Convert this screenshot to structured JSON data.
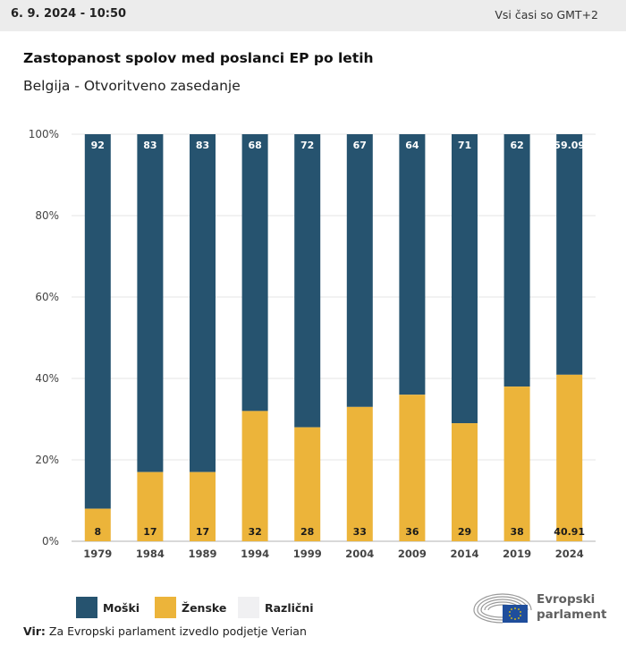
{
  "header": {
    "timestamp": "6. 9. 2024 - 10:50",
    "timezone": "Vsi časi so GMT+2"
  },
  "chart_data": {
    "type": "bar",
    "stacked": true,
    "title": "Zastopanost spolov med poslanci EP po letih",
    "subtitle": "Belgija - Otvoritveno zasedanje",
    "categories": [
      "1979",
      "1984",
      "1989",
      "1994",
      "1999",
      "2004",
      "2009",
      "2014",
      "2019",
      "2024"
    ],
    "series": [
      {
        "name": "Ženske",
        "color": "#ecb43a",
        "values": [
          8,
          17,
          17,
          32,
          28,
          33,
          36,
          29,
          38,
          40.91
        ]
      },
      {
        "name": "Moški",
        "color": "#26536f",
        "values": [
          92,
          83,
          83,
          68,
          72,
          67,
          64,
          71,
          62,
          59.09
        ]
      },
      {
        "name": "Različni",
        "color": "#f0f0f2",
        "values": [
          0,
          0,
          0,
          0,
          0,
          0,
          0,
          0,
          0,
          0
        ]
      }
    ],
    "ylim": [
      0,
      100
    ],
    "yticks": [
      "0%",
      "20%",
      "40%",
      "60%",
      "80%",
      "100%"
    ],
    "grid": true,
    "legend_position": "bottom-left"
  },
  "legend": [
    {
      "label": "Moški",
      "color": "#26536f"
    },
    {
      "label": "Ženske",
      "color": "#ecb43a"
    },
    {
      "label": "Različni",
      "color": "#f0f0f2"
    }
  ],
  "source": {
    "prefix": "Vir:",
    "text": "Za Evropski parlament izvedlo podjetje Verian"
  },
  "logo": {
    "line1": "Evropski",
    "line2": "parlament"
  }
}
